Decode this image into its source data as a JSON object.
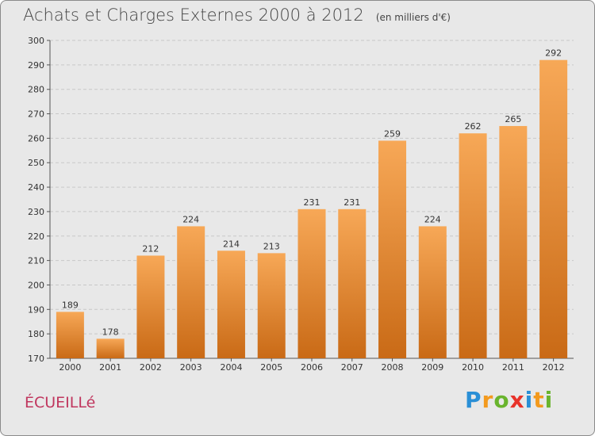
{
  "title": "Achats et Charges Externes 2000 à 2012",
  "subtitle": "(en milliers d'€)",
  "commune": "ÉCUEILLé",
  "logo": {
    "text": "Proxiti",
    "letters": [
      {
        "ch": "P",
        "color": "#2a8fd6"
      },
      {
        "ch": "r",
        "color": "#f39a1e"
      },
      {
        "ch": "o",
        "color": "#69b42d"
      },
      {
        "ch": "x",
        "color": "#e8332a"
      },
      {
        "ch": "i",
        "color": "#2a8fd6"
      },
      {
        "ch": "t",
        "color": "#f39a1e"
      },
      {
        "ch": "i",
        "color": "#69b42d"
      }
    ]
  },
  "chart_data": {
    "type": "bar",
    "title": "Achats et Charges Externes 2000 à 2012",
    "subtitle": "(en milliers d'€)",
    "categories": [
      "2000",
      "2001",
      "2002",
      "2003",
      "2004",
      "2005",
      "2006",
      "2007",
      "2008",
      "2009",
      "2010",
      "2011",
      "2012"
    ],
    "values": [
      189,
      178,
      212,
      224,
      214,
      213,
      231,
      231,
      259,
      224,
      262,
      265,
      292
    ],
    "ylim": [
      170,
      300
    ],
    "yticks": [
      170,
      180,
      190,
      200,
      210,
      220,
      230,
      240,
      250,
      260,
      270,
      280,
      290,
      300
    ],
    "grid": true,
    "bar_color_top": "#f7a857",
    "bar_color_bottom": "#c96a16"
  }
}
